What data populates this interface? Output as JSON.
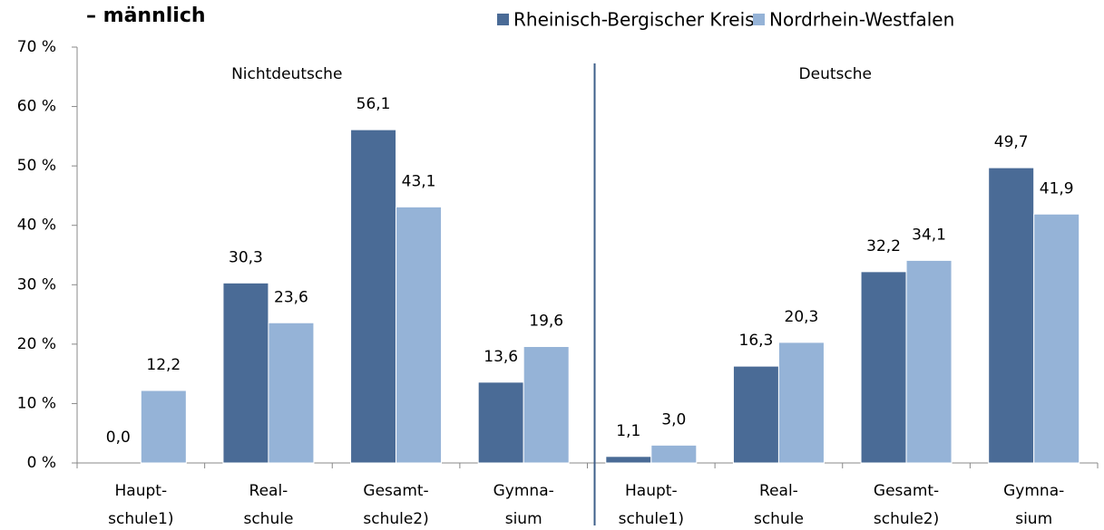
{
  "chart_data": {
    "type": "bar",
    "title": "– männlich",
    "groups": [
      "Nichtdeutsche",
      "Deutsche"
    ],
    "categories": [
      [
        "Haupt-",
        "schule1)"
      ],
      [
        "Real-",
        "schule"
      ],
      [
        "Gesamt-",
        "schule2)"
      ],
      [
        "Gymna-",
        "sium"
      ],
      [
        "Haupt-",
        "schule1)"
      ],
      [
        "Real-",
        "schule"
      ],
      [
        "Gesamt-",
        "schule2)"
      ],
      [
        "Gymna-",
        "sium"
      ]
    ],
    "series": [
      {
        "name": "Rheinisch-Bergischer Kreis",
        "color": "#4a6b96",
        "values": [
          0.0,
          30.3,
          56.1,
          13.6,
          1.1,
          16.3,
          32.2,
          49.7
        ],
        "value_labels": [
          "0,0",
          "30,3",
          "56,1",
          "13,6",
          "1,1",
          "16,3",
          "32,2",
          "49,7"
        ]
      },
      {
        "name": "Nordrhein-Westfalen",
        "color": "#95b3d7",
        "values": [
          12.2,
          23.6,
          43.1,
          19.6,
          3.0,
          20.3,
          34.1,
          41.9
        ],
        "value_labels": [
          "12,2",
          "23,6",
          "43,1",
          "19,6",
          "3,0",
          "20,3",
          "34,1",
          "41,9"
        ]
      }
    ],
    "ylim": [
      0,
      70
    ],
    "yticks": [
      {
        "value": 0,
        "label": "0 %"
      },
      {
        "value": 10,
        "label": "10 %"
      },
      {
        "value": 20,
        "label": "20 %"
      },
      {
        "value": 30,
        "label": "30 %"
      },
      {
        "value": 40,
        "label": "40 %"
      },
      {
        "value": 50,
        "label": "50 %"
      },
      {
        "value": 60,
        "label": "60 %"
      },
      {
        "value": 70,
        "label": "70 %"
      }
    ]
  }
}
